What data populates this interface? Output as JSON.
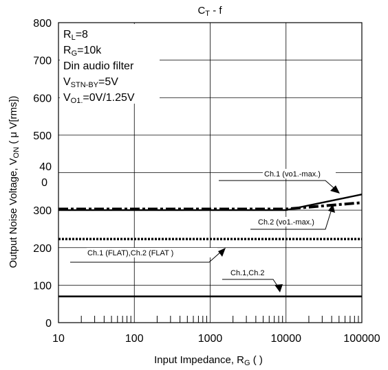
{
  "chart_data": {
    "type": "line",
    "title": {
      "main": "C",
      "sub": "T",
      "rest": " - f"
    },
    "xlabel": {
      "main": "Input Impedance, R",
      "sub": "G",
      "rest": " (   )"
    },
    "ylabel": {
      "main": "Output Noise Voltage, V",
      "sub": "ON",
      "rest": " ( μ V[rms])"
    },
    "x_scale": "log",
    "xlim": [
      10,
      100000
    ],
    "ylim": [
      0,
      800
    ],
    "grid": true,
    "x_ticks": [
      "10",
      "100",
      "1000",
      "10000",
      "100000"
    ],
    "y_ticks": [
      "0",
      "100",
      "200",
      "300",
      "",
      "500",
      "600",
      "700",
      "800"
    ],
    "y_tick_400": [
      "40",
      "0"
    ],
    "conditions": [
      {
        "main": "R",
        "sub": "L",
        "rest": "=8"
      },
      {
        "main": "R",
        "sub": "G",
        "rest": "=10k"
      },
      {
        "main": "Din audio filter",
        "sub": "",
        "rest": ""
      },
      {
        "main": "V",
        "sub": "STN-BY",
        "rest": "=5V"
      },
      {
        "main": "V",
        "sub": "O1.",
        "rest": "=0V/1.25V"
      }
    ],
    "series": [
      {
        "name": "Ch.1 (vo1.-max.)",
        "style": "solid",
        "x": [
          10,
          10000,
          100000
        ],
        "y": [
          300,
          300,
          342
        ]
      },
      {
        "name": "Ch.2 (vo1.-max.)",
        "style": "dashdot",
        "x": [
          10,
          10000,
          100000
        ],
        "y": [
          303,
          303,
          320
        ]
      },
      {
        "name": "Ch.1 (FLAT),Ch.2 (FLAT )",
        "style": "dotted",
        "x": [
          10,
          100000
        ],
        "y": [
          223,
          223
        ]
      },
      {
        "name": "Ch.1,Ch.2",
        "style": "solid",
        "x": [
          10,
          100000
        ],
        "y": [
          70,
          70
        ]
      }
    ],
    "colors": {
      "line": "#000000",
      "grid": "#000000",
      "background": "#ffffff"
    }
  }
}
